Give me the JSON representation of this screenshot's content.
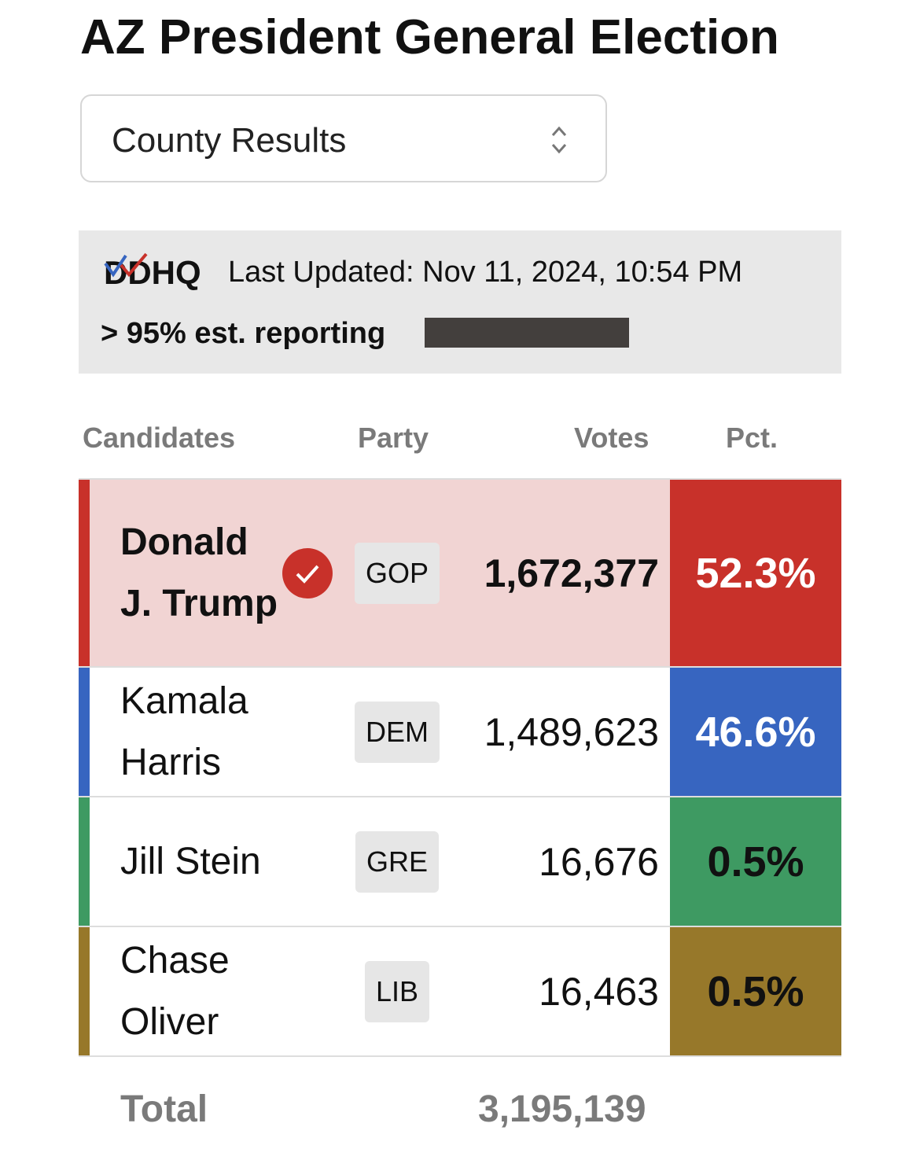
{
  "header": {
    "title": "AZ President General Election"
  },
  "dropdown": {
    "label": "County Results"
  },
  "info": {
    "source": "DDHQ",
    "last_updated": "Last Updated: Nov 11, 2024, 10:54 PM",
    "reporting": "> 95% est. reporting"
  },
  "table": {
    "columns": [
      "Candidates",
      "Party",
      "Votes",
      "Pct."
    ],
    "rows": [
      {
        "name": "Donald J. Trump",
        "party": "GOP",
        "votes": "1,672,377",
        "pct": "52.3%",
        "color": "#c8312a",
        "pct_text_color": "#ffffff",
        "winner": true
      },
      {
        "name": "Kamala Harris",
        "party": "DEM",
        "votes": "1,489,623",
        "pct": "46.6%",
        "color": "#3765c0",
        "pct_text_color": "#ffffff",
        "winner": false
      },
      {
        "name": "Jill Stein",
        "party": "GRE",
        "votes": "16,676",
        "pct": "0.5%",
        "color": "#3e9a62",
        "pct_text_color": "#111111",
        "winner": false
      },
      {
        "name": "Chase Oliver",
        "party": "LIB",
        "votes": "16,463",
        "pct": "0.5%",
        "color": "#97782a",
        "pct_text_color": "#111111",
        "winner": false
      }
    ],
    "total": {
      "label": "Total",
      "votes": "3,195,139"
    }
  }
}
